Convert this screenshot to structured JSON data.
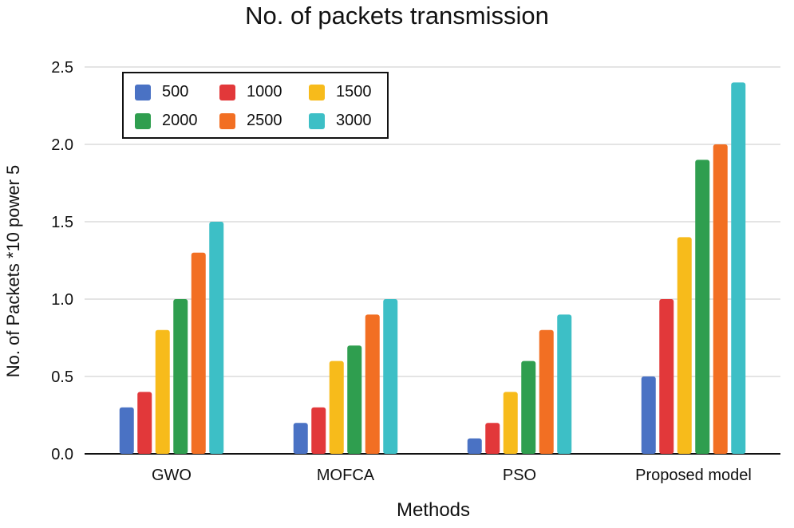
{
  "chart_data": {
    "type": "bar",
    "title": "No. of packets transmission",
    "xlabel": "Methods",
    "ylabel": "No. of Packets *10 power 5",
    "categories": [
      "GWO",
      "MOFCA",
      "PSO",
      "Proposed model"
    ],
    "series": [
      {
        "name": "500",
        "color": "#4a72c4",
        "values": [
          0.3,
          0.2,
          0.1,
          0.5
        ]
      },
      {
        "name": "1000",
        "color": "#e2383a",
        "values": [
          0.4,
          0.3,
          0.2,
          1.0
        ]
      },
      {
        "name": "1500",
        "color": "#f7bb1b",
        "values": [
          0.8,
          0.6,
          0.4,
          1.4
        ]
      },
      {
        "name": "2000",
        "color": "#2f9e4f",
        "values": [
          1.0,
          0.7,
          0.6,
          1.9
        ]
      },
      {
        "name": "2500",
        "color": "#f26f23",
        "values": [
          1.3,
          0.9,
          0.8,
          2.0
        ]
      },
      {
        "name": "3000",
        "color": "#3dbfc6",
        "values": [
          1.5,
          1.0,
          0.9,
          2.4
        ]
      }
    ],
    "ylim": [
      0,
      2.5
    ],
    "yticks": [
      "0.0",
      "0.5",
      "1.0",
      "1.5",
      "2.0",
      "2.5"
    ],
    "grid": true,
    "legend": "top-left"
  }
}
